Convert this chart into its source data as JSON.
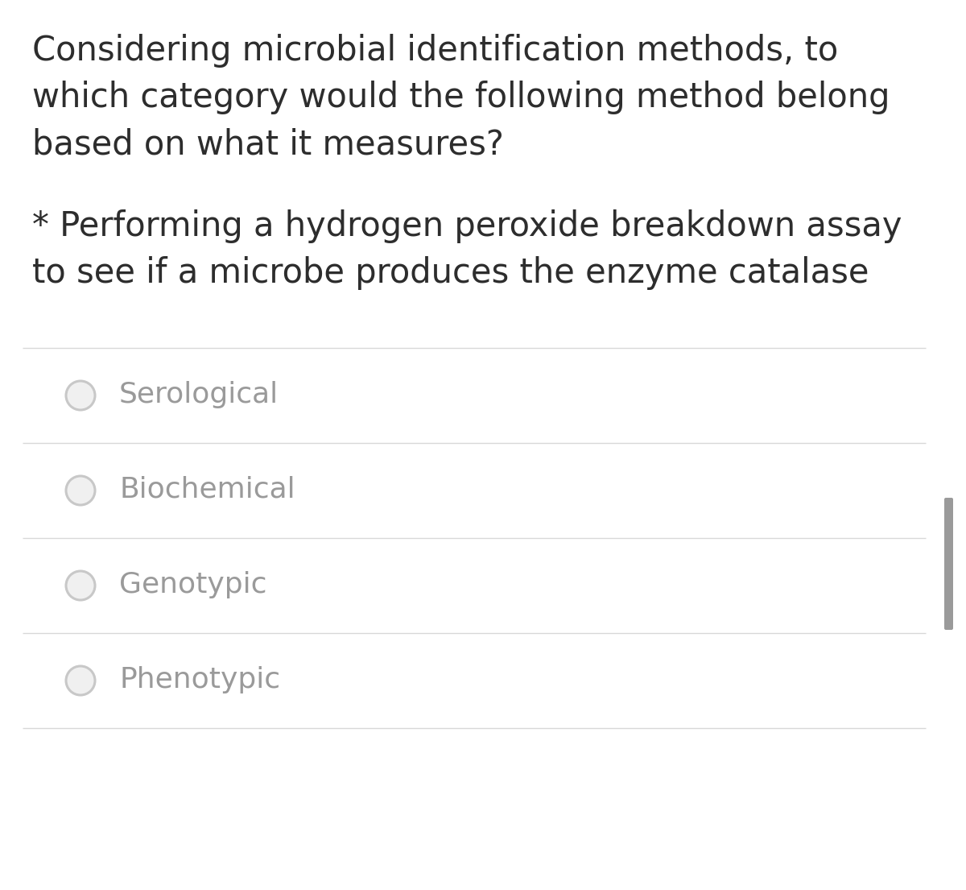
{
  "background_color": "#ffffff",
  "question_text_line1": "Considering microbial identification methods, to",
  "question_text_line2": "which category would the following method belong",
  "question_text_line3": "based on what it measures?",
  "scenario_line1": "* Performing a hydrogen peroxide breakdown assay",
  "scenario_line2": "to see if a microbe produces the enzyme catalase",
  "options": [
    "Serological",
    "Biochemical",
    "Genotypic",
    "Phenotypic"
  ],
  "question_font_size": 30,
  "scenario_font_size": 30,
  "option_font_size": 26,
  "text_color": "#2d2d2d",
  "option_text_color": "#9a9a9a",
  "divider_color": "#d8d8d8",
  "radio_color": "#c8c8c8",
  "radio_fill": "#f0f0f0",
  "scrollbar_color": "#9a9a9a",
  "fig_width": 12.0,
  "fig_height": 11.05,
  "dpi": 100
}
